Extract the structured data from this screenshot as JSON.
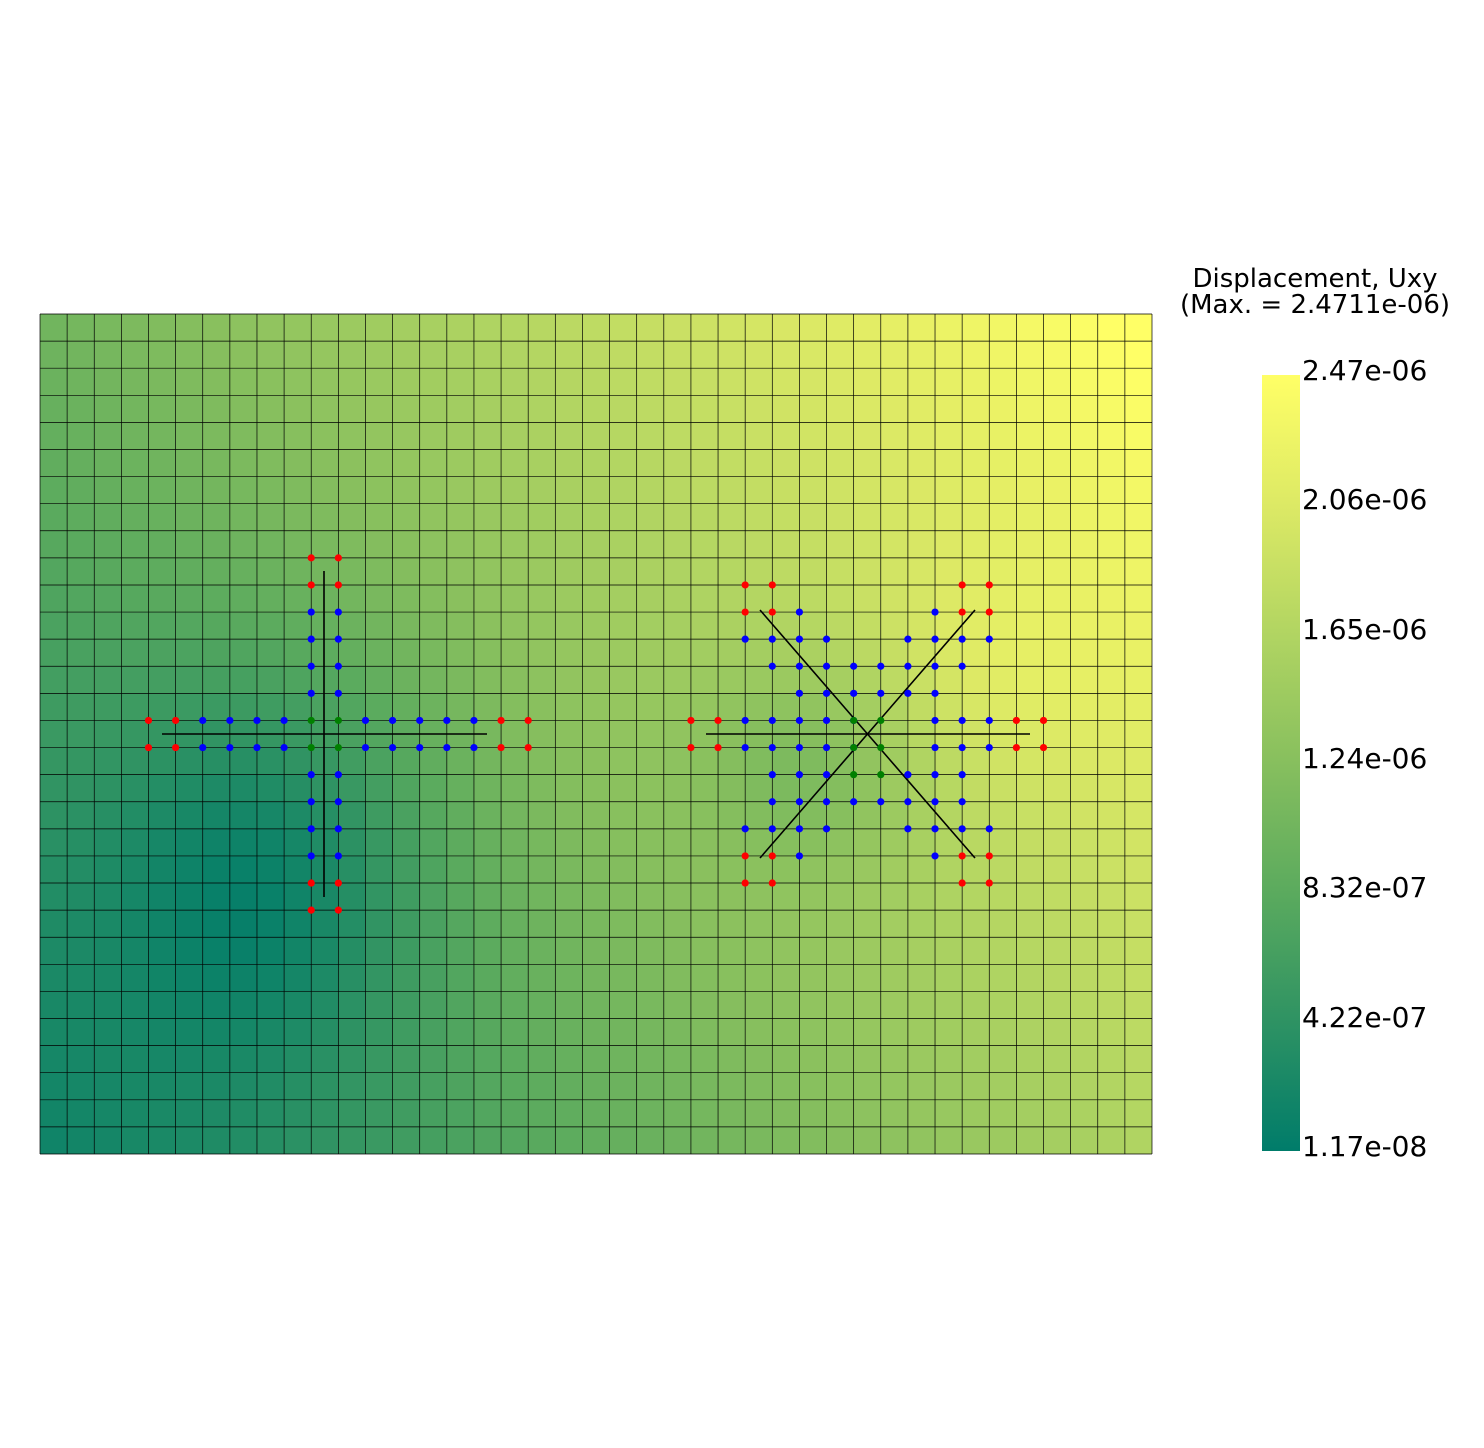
{
  "legend": {
    "title_line1": "Displacement, Uxy",
    "title_line2": "(Max. = 2.4711e-06)",
    "ticks": [
      "2.47e-06",
      "2.06e-06",
      "1.65e-06",
      "1.24e-06",
      "8.32e-07",
      "4.22e-07",
      "1.17e-08"
    ],
    "min": 1.17e-08,
    "max": 2.4711e-06,
    "colormap": [
      "#007c6a",
      "#2f9363",
      "#5aaa5e",
      "#87bf5e",
      "#b2d562",
      "#dce965",
      "#ffff66"
    ]
  },
  "mesh": {
    "columns": 41,
    "rows": 31,
    "grid_color": "#000000",
    "node_colors": {
      "red": "#ff0000",
      "blue": "#0000ff",
      "green": "#008000"
    }
  }
}
